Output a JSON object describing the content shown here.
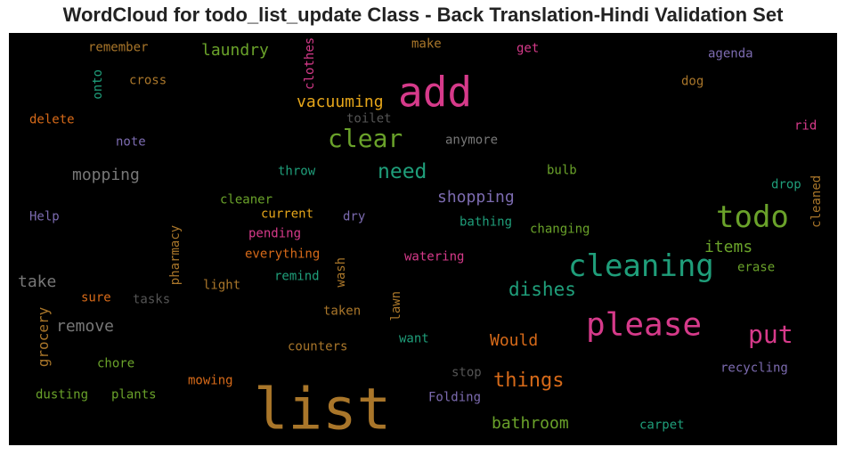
{
  "chart_data": {
    "type": "wordcloud",
    "title": "WordCloud for todo_list_update Class - Back Translation-Hindi Validation Set",
    "background": "#000000",
    "words": [
      {
        "text": "list",
        "size": 64,
        "color": "#a9762a"
      },
      {
        "text": "add",
        "size": 46,
        "color": "#d63a8a"
      },
      {
        "text": "please",
        "size": 36,
        "color": "#d63a8a"
      },
      {
        "text": "cleaning",
        "size": 34,
        "color": "#1f9e7a"
      },
      {
        "text": "todo",
        "size": 34,
        "color": "#6aa22a"
      },
      {
        "text": "clear",
        "size": 28,
        "color": "#6aa22a"
      },
      {
        "text": "put",
        "size": 28,
        "color": "#d63a8a"
      },
      {
        "text": "need",
        "size": 23,
        "color": "#1f9e7a"
      },
      {
        "text": "dishes",
        "size": 21,
        "color": "#1f9e7a"
      },
      {
        "text": "things",
        "size": 22,
        "color": "#d76a19"
      },
      {
        "text": "vacuuming",
        "size": 18,
        "color": "#e6a61a"
      },
      {
        "text": "mopping",
        "size": 18,
        "color": "#777777"
      },
      {
        "text": "laundry",
        "size": 18,
        "color": "#6aa22a"
      },
      {
        "text": "shopping",
        "size": 18,
        "color": "#7c6bb0"
      },
      {
        "text": "items",
        "size": 18,
        "color": "#6aa22a"
      },
      {
        "text": "take",
        "size": 18,
        "color": "#777777"
      },
      {
        "text": "remove",
        "size": 18,
        "color": "#777777"
      },
      {
        "text": "Would",
        "size": 18,
        "color": "#d76a19"
      },
      {
        "text": "bathroom",
        "size": 18,
        "color": "#6aa22a"
      },
      {
        "text": "grocery",
        "size": 16,
        "color": "#a9762a",
        "rotate": true
      },
      {
        "text": "remember",
        "size": 14,
        "color": "#a9762a"
      },
      {
        "text": "onto",
        "size": 14,
        "color": "#1f9e7a",
        "rotate": true
      },
      {
        "text": "cross",
        "size": 14,
        "color": "#a9762a"
      },
      {
        "text": "delete",
        "size": 14,
        "color": "#d76a19"
      },
      {
        "text": "note",
        "size": 14,
        "color": "#7c6bb0"
      },
      {
        "text": "Help",
        "size": 14,
        "color": "#7c6bb0"
      },
      {
        "text": "clothes",
        "size": 14,
        "color": "#d63a8a",
        "rotate": true
      },
      {
        "text": "make",
        "size": 14,
        "color": "#a9762a"
      },
      {
        "text": "get",
        "size": 14,
        "color": "#d63a8a"
      },
      {
        "text": "agenda",
        "size": 14,
        "color": "#7c6bb0"
      },
      {
        "text": "dog",
        "size": 14,
        "color": "#a9762a"
      },
      {
        "text": "toilet",
        "size": 14,
        "color": "#555555"
      },
      {
        "text": "anymore",
        "size": 14,
        "color": "#777777"
      },
      {
        "text": "rid",
        "size": 14,
        "color": "#d63a8a"
      },
      {
        "text": "throw",
        "size": 14,
        "color": "#1f9e7a"
      },
      {
        "text": "bulb",
        "size": 14,
        "color": "#6aa22a"
      },
      {
        "text": "drop",
        "size": 14,
        "color": "#1f9e7a"
      },
      {
        "text": "cleaned",
        "size": 14,
        "color": "#a9762a",
        "rotate": true
      },
      {
        "text": "cleaner",
        "size": 14,
        "color": "#6aa22a"
      },
      {
        "text": "current",
        "size": 14,
        "color": "#e6a61a"
      },
      {
        "text": "dry",
        "size": 14,
        "color": "#7c6bb0"
      },
      {
        "text": "bathing",
        "size": 14,
        "color": "#1f9e7a"
      },
      {
        "text": "changing",
        "size": 14,
        "color": "#6aa22a"
      },
      {
        "text": "pending",
        "size": 14,
        "color": "#d63a8a"
      },
      {
        "text": "pharmacy",
        "size": 14,
        "color": "#a9762a",
        "rotate": true
      },
      {
        "text": "everything",
        "size": 14,
        "color": "#d76a19"
      },
      {
        "text": "watering",
        "size": 14,
        "color": "#d63a8a"
      },
      {
        "text": "erase",
        "size": 14,
        "color": "#6aa22a"
      },
      {
        "text": "sure",
        "size": 14,
        "color": "#d76a19"
      },
      {
        "text": "tasks",
        "size": 14,
        "color": "#555555"
      },
      {
        "text": "light",
        "size": 14,
        "color": "#a9762a"
      },
      {
        "text": "remind",
        "size": 14,
        "color": "#1f9e7a"
      },
      {
        "text": "wash",
        "size": 14,
        "color": "#a9762a",
        "rotate": true
      },
      {
        "text": "taken",
        "size": 14,
        "color": "#a9762a"
      },
      {
        "text": "lawn",
        "size": 14,
        "color": "#a9762a",
        "rotate": true
      },
      {
        "text": "want",
        "size": 14,
        "color": "#1f9e7a"
      },
      {
        "text": "counters",
        "size": 14,
        "color": "#a9762a"
      },
      {
        "text": "chore",
        "size": 14,
        "color": "#6aa22a"
      },
      {
        "text": "stop",
        "size": 14,
        "color": "#555555"
      },
      {
        "text": "recycling",
        "size": 14,
        "color": "#7c6bb0"
      },
      {
        "text": "mowing",
        "size": 14,
        "color": "#d76a19"
      },
      {
        "text": "dusting",
        "size": 14,
        "color": "#6aa22a"
      },
      {
        "text": "plants",
        "size": 14,
        "color": "#6aa22a"
      },
      {
        "text": "Folding",
        "size": 14,
        "color": "#7c6bb0"
      },
      {
        "text": "carpet",
        "size": 14,
        "color": "#1f9e7a"
      }
    ]
  }
}
